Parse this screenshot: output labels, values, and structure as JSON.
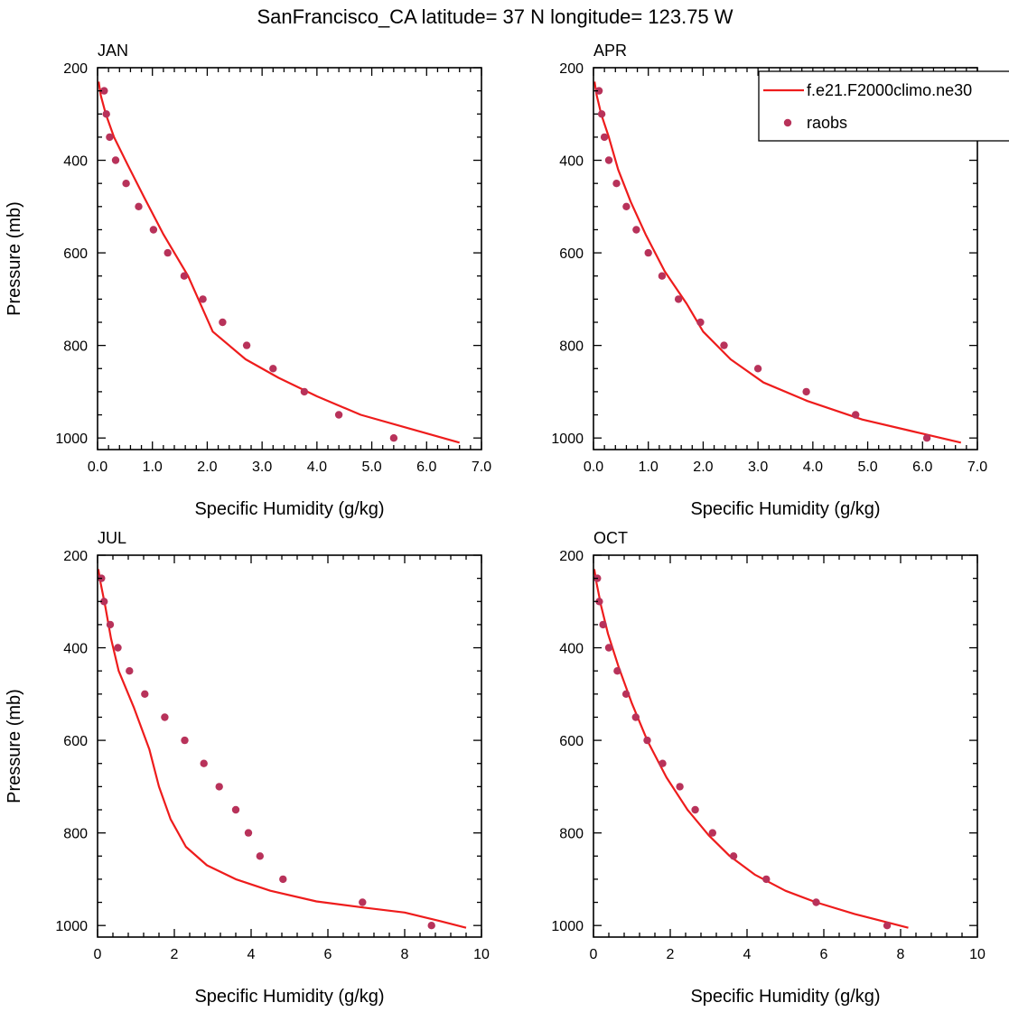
{
  "figure": {
    "title": "SanFrancisco_CA  latitude= 37 N longitude= 123.75 W"
  },
  "colors": {
    "model_line": "#ee1c1c",
    "obs_marker": "#b8325a",
    "axis": "#000000"
  },
  "legend": {
    "placement": "top-right",
    "entries": [
      {
        "label": "f.e21.F2000climo.ne30",
        "style": "line",
        "color": "#ee1c1c"
      },
      {
        "label": "raobs",
        "style": "marker",
        "color": "#b8325a"
      }
    ]
  },
  "chart_data": [
    {
      "type": "line",
      "title": "JAN",
      "xlabel": "Specific Humidity (g/kg)",
      "ylabel": "Pressure (mb)",
      "xlim": [
        0,
        7
      ],
      "ylim": [
        200,
        1025
      ],
      "y_inverted": true,
      "xticks": [
        "0.0",
        "1.0",
        "2.0",
        "3.0",
        "4.0",
        "5.0",
        "6.0",
        "7.0"
      ],
      "yticks": [
        "200",
        "400",
        "600",
        "800",
        "1000"
      ],
      "series": [
        {
          "name": "f.e21.F2000climo.ne30",
          "kind": "line",
          "x": [
            0.02,
            0.06,
            0.15,
            0.3,
            0.55,
            0.85,
            1.2,
            1.65,
            2.1,
            2.7,
            3.3,
            4.0,
            4.8,
            5.7,
            6.6
          ],
          "y": [
            230,
            260,
            300,
            350,
            410,
            480,
            560,
            650,
            770,
            830,
            870,
            910,
            950,
            980,
            1010
          ]
        },
        {
          "name": "raobs",
          "kind": "scatter",
          "x": [
            0.12,
            0.16,
            0.22,
            0.33,
            0.52,
            0.75,
            1.02,
            1.28,
            1.58,
            1.92,
            2.28,
            2.72,
            3.2,
            3.77,
            4.4,
            5.4
          ],
          "y": [
            250,
            300,
            350,
            400,
            450,
            500,
            550,
            600,
            650,
            700,
            750,
            800,
            850,
            900,
            950,
            1000
          ]
        }
      ]
    },
    {
      "type": "line",
      "title": "APR",
      "xlabel": "Specific Humidity (g/kg)",
      "ylabel": "",
      "xlim": [
        0,
        7
      ],
      "ylim": [
        200,
        1025
      ],
      "y_inverted": true,
      "xticks": [
        "0.0",
        "1.0",
        "2.0",
        "3.0",
        "4.0",
        "5.0",
        "6.0",
        "7.0"
      ],
      "yticks": [
        "200",
        "400",
        "600",
        "800",
        "1000"
      ],
      "series": [
        {
          "name": "f.e21.F2000climo.ne30",
          "kind": "line",
          "x": [
            0.02,
            0.06,
            0.14,
            0.28,
            0.45,
            0.68,
            0.95,
            1.3,
            1.7,
            2.0,
            2.5,
            3.1,
            3.9,
            4.9,
            5.8,
            6.7
          ],
          "y": [
            230,
            260,
            300,
            350,
            420,
            490,
            560,
            640,
            710,
            770,
            830,
            880,
            920,
            960,
            985,
            1010
          ]
        },
        {
          "name": "raobs",
          "kind": "scatter",
          "x": [
            0.1,
            0.15,
            0.2,
            0.28,
            0.42,
            0.6,
            0.78,
            1.0,
            1.25,
            1.55,
            1.95,
            2.38,
            3.0,
            3.88,
            4.78,
            6.08
          ],
          "y": [
            250,
            300,
            350,
            400,
            450,
            500,
            550,
            600,
            650,
            700,
            750,
            800,
            850,
            900,
            950,
            1000
          ]
        }
      ]
    },
    {
      "type": "line",
      "title": "JUL",
      "xlabel": "Specific Humidity (g/kg)",
      "ylabel": "Pressure (mb)",
      "xlim": [
        0,
        10
      ],
      "ylim": [
        200,
        1025
      ],
      "y_inverted": true,
      "xticks": [
        "0",
        "2",
        "4",
        "6",
        "8",
        "10"
      ],
      "yticks": [
        "200",
        "400",
        "600",
        "800",
        "1000"
      ],
      "series": [
        {
          "name": "f.e21.F2000climo.ne30",
          "kind": "line",
          "x": [
            0.02,
            0.08,
            0.2,
            0.35,
            0.55,
            0.95,
            1.35,
            1.6,
            1.9,
            2.3,
            2.85,
            3.6,
            4.5,
            5.7,
            7.0,
            8.0,
            8.9,
            9.6
          ],
          "y": [
            230,
            260,
            310,
            380,
            450,
            530,
            620,
            700,
            770,
            830,
            870,
            900,
            925,
            948,
            962,
            972,
            990,
            1005
          ]
        },
        {
          "name": "raobs",
          "kind": "scatter",
          "x": [
            0.1,
            0.17,
            0.33,
            0.53,
            0.83,
            1.23,
            1.75,
            2.27,
            2.77,
            3.17,
            3.6,
            3.93,
            4.23,
            4.83,
            6.9,
            8.7
          ],
          "y": [
            250,
            300,
            350,
            400,
            450,
            500,
            550,
            600,
            650,
            700,
            750,
            800,
            850,
            900,
            950,
            1000
          ]
        }
      ]
    },
    {
      "type": "line",
      "title": "OCT",
      "xlabel": "Specific Humidity (g/kg)",
      "ylabel": "",
      "xlim": [
        0,
        10
      ],
      "ylim": [
        200,
        1025
      ],
      "y_inverted": true,
      "xticks": [
        "0",
        "2",
        "4",
        "6",
        "8",
        "10"
      ],
      "yticks": [
        "200",
        "400",
        "600",
        "800",
        "1000"
      ],
      "series": [
        {
          "name": "f.e21.F2000climo.ne30",
          "kind": "line",
          "x": [
            0.02,
            0.08,
            0.2,
            0.38,
            0.65,
            1.0,
            1.4,
            1.9,
            2.45,
            3.0,
            3.55,
            4.2,
            5.0,
            5.8,
            6.8,
            8.2
          ],
          "y": [
            230,
            260,
            310,
            370,
            440,
            520,
            600,
            680,
            750,
            805,
            850,
            890,
            925,
            950,
            975,
            1005
          ]
        },
        {
          "name": "raobs",
          "kind": "scatter",
          "x": [
            0.1,
            0.15,
            0.25,
            0.4,
            0.62,
            0.85,
            1.1,
            1.4,
            1.8,
            2.25,
            2.65,
            3.1,
            3.65,
            4.5,
            5.8,
            7.65
          ],
          "y": [
            250,
            300,
            350,
            400,
            450,
            500,
            550,
            600,
            650,
            700,
            750,
            800,
            850,
            900,
            950,
            1000
          ]
        }
      ]
    }
  ]
}
